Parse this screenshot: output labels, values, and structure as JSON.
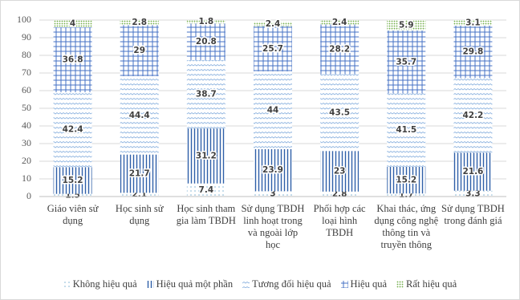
{
  "chart_data": {
    "type": "bar",
    "stacked": true,
    "categories": [
      "Giáo viên sử dụng",
      "Học sinh sử dụng",
      "Học sinh tham gia làm TBDH",
      "Sử dụng TBDH linh hoạt trong và ngoài lớp học",
      "Phối hợp các loại hình TBDH",
      "Khai thác, ứng dụng công nghệ thông tin và truyền thông",
      "Sử dụng TBDH trong đánh giá"
    ],
    "series": [
      {
        "name": "Không hiệu quả",
        "color": "#7fb3d5",
        "values": [
          1.5,
          2.1,
          7.4,
          3,
          2.8,
          1.7,
          3.3
        ]
      },
      {
        "name": "Hiệu quả một phần",
        "color": "#2e5fa8",
        "values": [
          15.2,
          21.7,
          31.2,
          23.9,
          23,
          15.2,
          21.6
        ]
      },
      {
        "name": "Tương đối hiệu quả",
        "color": "#8fb4e0",
        "values": [
          42.4,
          44.4,
          38.7,
          44,
          43.5,
          41.5,
          42.2
        ]
      },
      {
        "name": "Hiệu quả",
        "color": "#4472c4",
        "values": [
          36.8,
          29,
          20.8,
          25.7,
          28.2,
          35.7,
          29.8
        ]
      },
      {
        "name": "Rất hiệu quả",
        "color": "#70ad47",
        "values": [
          4,
          2.8,
          1.8,
          2.4,
          2.4,
          5.9,
          3.1
        ]
      }
    ],
    "ylim": [
      0,
      100
    ],
    "yticks": [
      0,
      10,
      20,
      30,
      40,
      50,
      60,
      70,
      80,
      90,
      100
    ],
    "grid": true,
    "legend": "bottom"
  }
}
